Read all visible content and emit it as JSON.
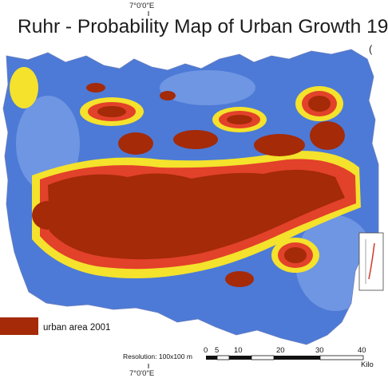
{
  "map": {
    "title": "Ruhr - Probability Map of Urban Growth 19",
    "right_edge_mark": "(",
    "longitude_top": "7°0'0\"E",
    "longitude_bottom": "7°0'0\"E",
    "legend": {
      "urban_label": "urban area 2001",
      "urban_color": "#a42a08"
    },
    "colors": {
      "low_probability": "#4d7ad6",
      "medium_probability": "#f4e22c",
      "high_probability": "#e2412a",
      "urban": "#a42a08",
      "outside": "#ffffff"
    },
    "scalebar": {
      "resolution": "Resolution: 100x100 m",
      "ticks": [
        "0",
        "5",
        "10",
        "20",
        "30",
        "40"
      ],
      "unit": "Kilo"
    }
  }
}
